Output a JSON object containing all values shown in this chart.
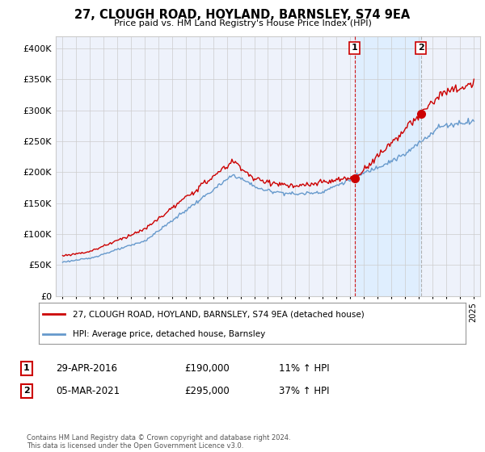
{
  "title": "27, CLOUGH ROAD, HOYLAND, BARNSLEY, S74 9EA",
  "subtitle": "Price paid vs. HM Land Registry's House Price Index (HPI)",
  "legend_line1": "27, CLOUGH ROAD, HOYLAND, BARNSLEY, S74 9EA (detached house)",
  "legend_line2": "HPI: Average price, detached house, Barnsley",
  "transaction1_date": "29-APR-2016",
  "transaction1_price": "£190,000",
  "transaction1_hpi": "11% ↑ HPI",
  "transaction2_date": "05-MAR-2021",
  "transaction2_price": "£295,000",
  "transaction2_hpi": "37% ↑ HPI",
  "footer": "Contains HM Land Registry data © Crown copyright and database right 2024.\nThis data is licensed under the Open Government Licence v3.0.",
  "red_color": "#cc0000",
  "blue_color": "#6699cc",
  "shade_color": "#ddeeff",
  "marker1_x": 2016.33,
  "marker1_y": 190000,
  "marker2_x": 2021.17,
  "marker2_y": 295000,
  "vline1_x": 2016.33,
  "vline2_x": 2021.17,
  "ylim": [
    0,
    420000
  ],
  "xlim": [
    1994.5,
    2025.5
  ],
  "background_color": "#eef2fb"
}
